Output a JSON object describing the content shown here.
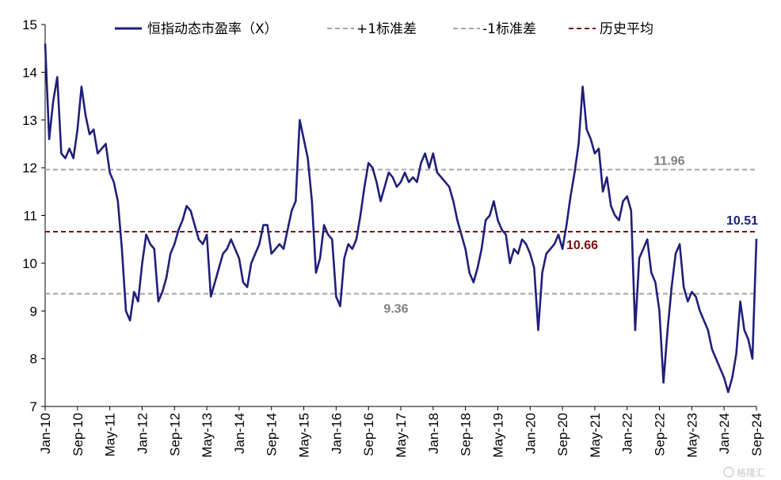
{
  "chart_data": {
    "type": "line",
    "ylim": [
      7,
      15
    ],
    "yticks": [
      7,
      8,
      9,
      10,
      11,
      12,
      13,
      14,
      15
    ],
    "x_start": "2010-01",
    "x_end": "2024-09",
    "xtick_labels": [
      "Jan-10",
      "Sep-10",
      "May-11",
      "Jan-12",
      "Sep-12",
      "May-13",
      "Jan-14",
      "Sep-14",
      "May-15",
      "Jan-16",
      "Sep-16",
      "May-17",
      "Jan-18",
      "Sep-18",
      "May-19",
      "Jan-20",
      "Sep-20",
      "May-21",
      "Jan-22",
      "Sep-22",
      "May-23",
      "Jan-24",
      "Sep-24"
    ],
    "legend": [
      "恒指动态市盈率（X）",
      "+1标准差",
      "-1标准差",
      "历史平均"
    ],
    "reference_lines": {
      "plus_1sd": 11.96,
      "minus_1sd": 9.36,
      "mean": 10.66
    },
    "annotations": {
      "plus_1sd": "11.96",
      "minus_1sd": "9.36",
      "mean": "10.66",
      "last": "10.51"
    },
    "series": [
      {
        "name": "恒指动态市盈率（X）",
        "points": [
          [
            "2010-01",
            14.6
          ],
          [
            "2010-02",
            12.6
          ],
          [
            "2010-03",
            13.4
          ],
          [
            "2010-04",
            13.9
          ],
          [
            "2010-05",
            12.3
          ],
          [
            "2010-06",
            12.2
          ],
          [
            "2010-07",
            12.4
          ],
          [
            "2010-08",
            12.2
          ],
          [
            "2010-09",
            12.8
          ],
          [
            "2010-10",
            13.7
          ],
          [
            "2010-11",
            13.1
          ],
          [
            "2010-12",
            12.7
          ],
          [
            "2011-01",
            12.8
          ],
          [
            "2011-02",
            12.3
          ],
          [
            "2011-03",
            12.4
          ],
          [
            "2011-04",
            12.5
          ],
          [
            "2011-05",
            11.9
          ],
          [
            "2011-06",
            11.7
          ],
          [
            "2011-07",
            11.3
          ],
          [
            "2011-08",
            10.3
          ],
          [
            "2011-09",
            9.0
          ],
          [
            "2011-10",
            8.8
          ],
          [
            "2011-11",
            9.4
          ],
          [
            "2011-12",
            9.2
          ],
          [
            "2012-01",
            10.0
          ],
          [
            "2012-02",
            10.6
          ],
          [
            "2012-03",
            10.4
          ],
          [
            "2012-04",
            10.3
          ],
          [
            "2012-05",
            9.2
          ],
          [
            "2012-06",
            9.4
          ],
          [
            "2012-07",
            9.7
          ],
          [
            "2012-08",
            10.2
          ],
          [
            "2012-09",
            10.4
          ],
          [
            "2012-10",
            10.7
          ],
          [
            "2012-11",
            10.9
          ],
          [
            "2012-12",
            11.2
          ],
          [
            "2013-01",
            11.1
          ],
          [
            "2013-02",
            10.8
          ],
          [
            "2013-03",
            10.5
          ],
          [
            "2013-04",
            10.4
          ],
          [
            "2013-05",
            10.6
          ],
          [
            "2013-06",
            9.3
          ],
          [
            "2013-07",
            9.6
          ],
          [
            "2013-08",
            9.9
          ],
          [
            "2013-09",
            10.2
          ],
          [
            "2013-10",
            10.3
          ],
          [
            "2013-11",
            10.5
          ],
          [
            "2013-12",
            10.3
          ],
          [
            "2014-01",
            10.1
          ],
          [
            "2014-02",
            9.6
          ],
          [
            "2014-03",
            9.5
          ],
          [
            "2014-04",
            10.0
          ],
          [
            "2014-05",
            10.2
          ],
          [
            "2014-06",
            10.4
          ],
          [
            "2014-07",
            10.8
          ],
          [
            "2014-08",
            10.8
          ],
          [
            "2014-09",
            10.2
          ],
          [
            "2014-10",
            10.3
          ],
          [
            "2014-11",
            10.4
          ],
          [
            "2014-12",
            10.3
          ],
          [
            "2015-01",
            10.7
          ],
          [
            "2015-02",
            11.1
          ],
          [
            "2015-03",
            11.3
          ],
          [
            "2015-04",
            13.0
          ],
          [
            "2015-05",
            12.6
          ],
          [
            "2015-06",
            12.2
          ],
          [
            "2015-07",
            11.3
          ],
          [
            "2015-08",
            9.8
          ],
          [
            "2015-09",
            10.1
          ],
          [
            "2015-10",
            10.8
          ],
          [
            "2015-11",
            10.6
          ],
          [
            "2015-12",
            10.5
          ],
          [
            "2016-01",
            9.3
          ],
          [
            "2016-02",
            9.1
          ],
          [
            "2016-03",
            10.1
          ],
          [
            "2016-04",
            10.4
          ],
          [
            "2016-05",
            10.3
          ],
          [
            "2016-06",
            10.5
          ],
          [
            "2016-07",
            11.0
          ],
          [
            "2016-08",
            11.6
          ],
          [
            "2016-09",
            12.1
          ],
          [
            "2016-10",
            12.0
          ],
          [
            "2016-11",
            11.7
          ],
          [
            "2016-12",
            11.3
          ],
          [
            "2017-01",
            11.6
          ],
          [
            "2017-02",
            11.9
          ],
          [
            "2017-03",
            11.8
          ],
          [
            "2017-04",
            11.6
          ],
          [
            "2017-05",
            11.7
          ],
          [
            "2017-06",
            11.9
          ],
          [
            "2017-07",
            11.7
          ],
          [
            "2017-08",
            11.8
          ],
          [
            "2017-09",
            11.7
          ],
          [
            "2017-10",
            12.1
          ],
          [
            "2017-11",
            12.3
          ],
          [
            "2017-12",
            12.0
          ],
          [
            "2018-01",
            12.3
          ],
          [
            "2018-02",
            11.9
          ],
          [
            "2018-03",
            11.8
          ],
          [
            "2018-04",
            11.7
          ],
          [
            "2018-05",
            11.6
          ],
          [
            "2018-06",
            11.3
          ],
          [
            "2018-07",
            10.9
          ],
          [
            "2018-08",
            10.6
          ],
          [
            "2018-09",
            10.3
          ],
          [
            "2018-10",
            9.8
          ],
          [
            "2018-11",
            9.6
          ],
          [
            "2018-12",
            9.9
          ],
          [
            "2019-01",
            10.3
          ],
          [
            "2019-02",
            10.9
          ],
          [
            "2019-03",
            11.0
          ],
          [
            "2019-04",
            11.3
          ],
          [
            "2019-05",
            10.9
          ],
          [
            "2019-06",
            10.7
          ],
          [
            "2019-07",
            10.6
          ],
          [
            "2019-08",
            10.0
          ],
          [
            "2019-09",
            10.3
          ],
          [
            "2019-10",
            10.2
          ],
          [
            "2019-11",
            10.5
          ],
          [
            "2019-12",
            10.4
          ],
          [
            "2020-01",
            10.2
          ],
          [
            "2020-02",
            9.9
          ],
          [
            "2020-03",
            8.6
          ],
          [
            "2020-04",
            9.8
          ],
          [
            "2020-05",
            10.2
          ],
          [
            "2020-06",
            10.3
          ],
          [
            "2020-07",
            10.4
          ],
          [
            "2020-08",
            10.6
          ],
          [
            "2020-09",
            10.3
          ],
          [
            "2020-10",
            10.8
          ],
          [
            "2020-11",
            11.4
          ],
          [
            "2020-12",
            11.9
          ],
          [
            "2021-01",
            12.5
          ],
          [
            "2021-02",
            13.7
          ],
          [
            "2021-03",
            12.8
          ],
          [
            "2021-04",
            12.6
          ],
          [
            "2021-05",
            12.3
          ],
          [
            "2021-06",
            12.4
          ],
          [
            "2021-07",
            11.5
          ],
          [
            "2021-08",
            11.8
          ],
          [
            "2021-09",
            11.2
          ],
          [
            "2021-10",
            11.0
          ],
          [
            "2021-11",
            10.9
          ],
          [
            "2021-12",
            11.3
          ],
          [
            "2022-01",
            11.4
          ],
          [
            "2022-02",
            11.1
          ],
          [
            "2022-03",
            8.6
          ],
          [
            "2022-04",
            10.1
          ],
          [
            "2022-05",
            10.3
          ],
          [
            "2022-06",
            10.5
          ],
          [
            "2022-07",
            9.8
          ],
          [
            "2022-08",
            9.6
          ],
          [
            "2022-09",
            9.0
          ],
          [
            "2022-10",
            7.5
          ],
          [
            "2022-11",
            8.6
          ],
          [
            "2022-12",
            9.5
          ],
          [
            "2023-01",
            10.2
          ],
          [
            "2023-02",
            10.4
          ],
          [
            "2023-03",
            9.5
          ],
          [
            "2023-04",
            9.2
          ],
          [
            "2023-05",
            9.4
          ],
          [
            "2023-06",
            9.3
          ],
          [
            "2023-07",
            9.0
          ],
          [
            "2023-08",
            8.8
          ],
          [
            "2023-09",
            8.6
          ],
          [
            "2023-10",
            8.2
          ],
          [
            "2023-11",
            8.0
          ],
          [
            "2023-12",
            7.8
          ],
          [
            "2024-01",
            7.6
          ],
          [
            "2024-02",
            7.3
          ],
          [
            "2024-03",
            7.6
          ],
          [
            "2024-04",
            8.1
          ],
          [
            "2024-05",
            9.2
          ],
          [
            "2024-06",
            8.6
          ],
          [
            "2024-07",
            8.4
          ],
          [
            "2024-08",
            8.0
          ],
          [
            "2024-09",
            10.51
          ]
        ]
      }
    ]
  },
  "watermark": "格隆汇"
}
